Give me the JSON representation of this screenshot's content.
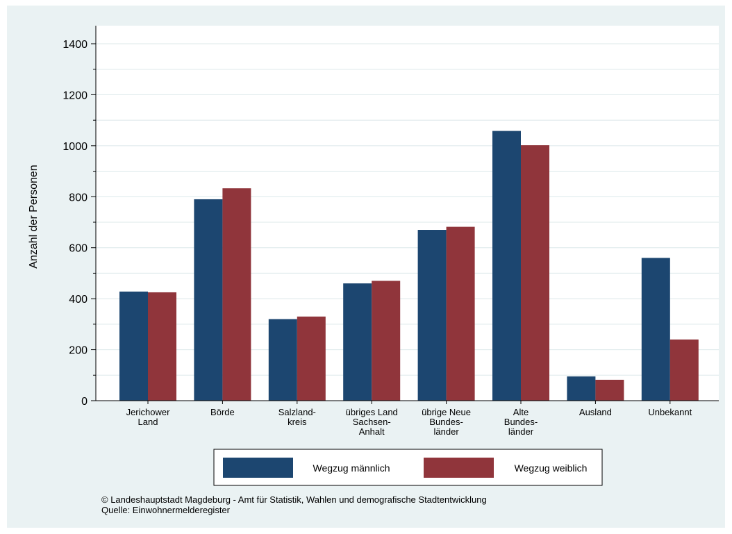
{
  "chart_data": {
    "type": "bar",
    "categories": [
      [
        "Jerichower",
        "Land"
      ],
      [
        "Börde"
      ],
      [
        "Salzland-",
        "kreis"
      ],
      [
        "übriges Land",
        "Sachsen-",
        "Anhalt"
      ],
      [
        "übrige Neue",
        "Bundes-",
        "länder"
      ],
      [
        "Alte",
        "Bundes-",
        "länder"
      ],
      [
        "Ausland"
      ],
      [
        "Unbekannt"
      ]
    ],
    "series": [
      {
        "name": "Wegzug männlich",
        "color": "#1c4670",
        "values": [
          428,
          790,
          320,
          460,
          670,
          1058,
          95,
          560
        ]
      },
      {
        "name": "Wegzug weiblich",
        "color": "#90353b",
        "values": [
          425,
          833,
          330,
          470,
          682,
          1002,
          82,
          240
        ]
      }
    ],
    "ylabel": "Anzahl der Personen",
    "ylim": [
      0,
      1400
    ],
    "yticks": [
      0,
      200,
      400,
      600,
      800,
      1000,
      1200,
      1400
    ],
    "grid": true,
    "legend_position": "bottom"
  },
  "footer": {
    "copyright": "©  Landeshauptstadt Magdeburg - Amt für Statistik, Wahlen und demografische Stadtentwicklung",
    "source": "Quelle: Einwohnermelderegister"
  }
}
